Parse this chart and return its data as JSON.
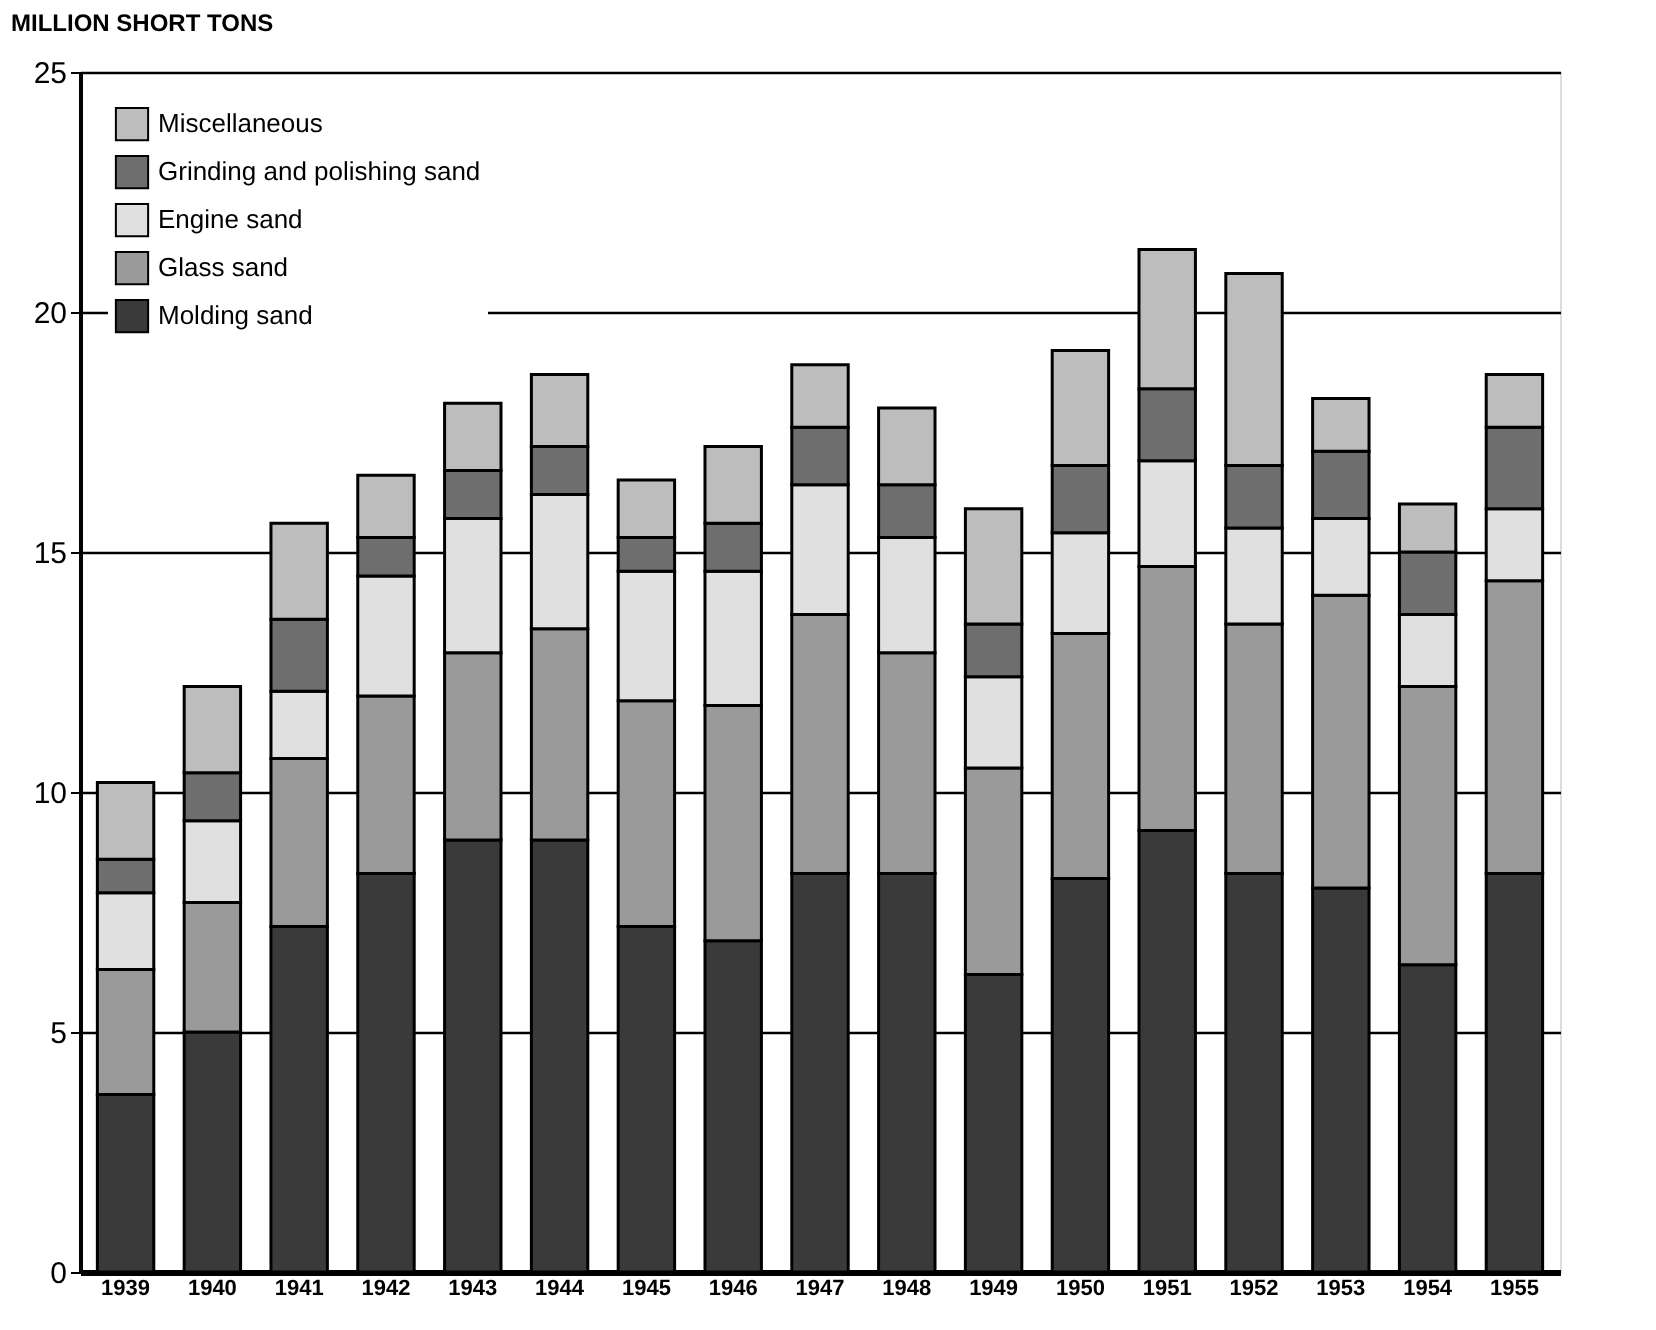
{
  "chart_data": {
    "type": "bar",
    "stacked": true,
    "ylabel": "MILLION SHORT TONS",
    "categories": [
      "1939",
      "1940",
      "1941",
      "1942",
      "1943",
      "1944",
      "1945",
      "1946",
      "1947",
      "1948",
      "1949",
      "1950",
      "1951",
      "1952",
      "1953",
      "1954",
      "1955"
    ],
    "series": [
      {
        "name": "Molding sand",
        "color": "#3a3a3a",
        "values": [
          3.7,
          5.0,
          7.2,
          8.3,
          9.0,
          9.0,
          7.2,
          6.9,
          8.3,
          8.3,
          6.2,
          8.2,
          9.2,
          8.3,
          8.0,
          6.4,
          8.3
        ]
      },
      {
        "name": "Glass sand",
        "color": "#9a9a9a",
        "values": [
          2.6,
          2.7,
          3.5,
          3.7,
          3.9,
          4.4,
          4.7,
          4.9,
          5.4,
          4.6,
          4.3,
          5.1,
          5.5,
          5.2,
          6.1,
          5.8,
          6.1
        ]
      },
      {
        "name": "Engine sand",
        "color": "#e0e0e0",
        "values": [
          1.6,
          1.7,
          1.4,
          2.5,
          2.8,
          2.8,
          2.7,
          2.8,
          2.7,
          2.4,
          1.9,
          2.1,
          2.2,
          2.0,
          1.6,
          1.5,
          1.5
        ]
      },
      {
        "name": "Grinding and polishing sand",
        "color": "#6e6e6e",
        "values": [
          0.7,
          1.0,
          1.5,
          0.8,
          1.0,
          1.0,
          0.7,
          1.0,
          1.2,
          1.1,
          1.1,
          1.4,
          1.5,
          1.3,
          1.4,
          1.3,
          1.7
        ]
      },
      {
        "name": "Miscellaneous",
        "color": "#bdbdbd",
        "values": [
          1.6,
          1.8,
          2.0,
          1.3,
          1.4,
          1.5,
          1.2,
          1.6,
          1.3,
          1.6,
          2.4,
          2.4,
          2.9,
          4.0,
          1.1,
          1.0,
          1.1
        ]
      }
    ],
    "ylim": [
      0,
      25
    ],
    "yticks": [
      0,
      5,
      10,
      15,
      20,
      25
    ],
    "grid": "y",
    "legend": "top left"
  }
}
